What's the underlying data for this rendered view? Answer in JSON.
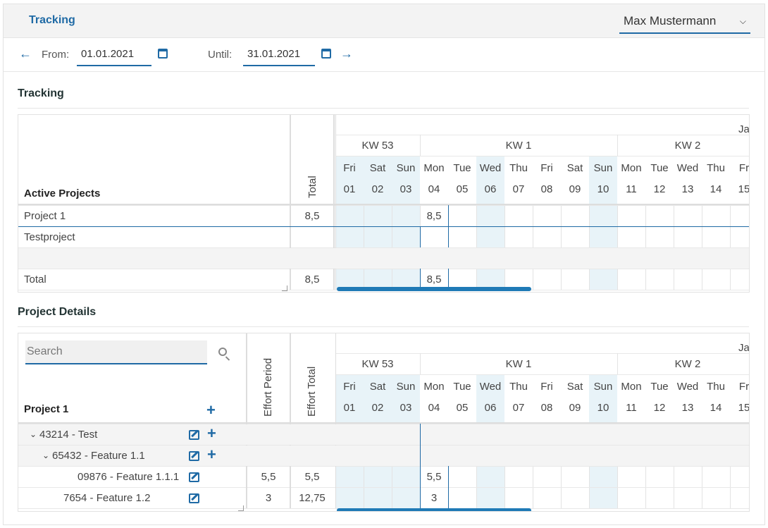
{
  "header": {
    "app_title": "Tracking",
    "user_name": "Max Mustermann"
  },
  "dates": {
    "from_label": "From:",
    "from_value": "01.01.2021",
    "until_label": "Until:",
    "until_value": "31.01.2021"
  },
  "tracking": {
    "section_title": "Tracking",
    "month_label": "Ja",
    "col_header": "Active Projects",
    "total_header": "Total",
    "weeks": [
      "KW 53",
      "KW 1",
      "KW 2"
    ],
    "days": [
      {
        "dow": "Fri",
        "num": "01"
      },
      {
        "dow": "Sat",
        "num": "02"
      },
      {
        "dow": "Sun",
        "num": "03"
      },
      {
        "dow": "Mon",
        "num": "04"
      },
      {
        "dow": "Tue",
        "num": "05"
      },
      {
        "dow": "Wed",
        "num": "06"
      },
      {
        "dow": "Thu",
        "num": "07"
      },
      {
        "dow": "Fri",
        "num": "08"
      },
      {
        "dow": "Sat",
        "num": "09"
      },
      {
        "dow": "Sun",
        "num": "10"
      },
      {
        "dow": "Mon",
        "num": "11"
      },
      {
        "dow": "Tue",
        "num": "12"
      },
      {
        "dow": "Wed",
        "num": "13"
      },
      {
        "dow": "Thu",
        "num": "14"
      },
      {
        "dow": "Fr",
        "num": "15"
      }
    ],
    "rows": [
      {
        "name": "Project 1",
        "total": "8,5",
        "day04": "8,5"
      },
      {
        "name": "Testproject",
        "total": "",
        "day04": ""
      },
      {
        "name": "",
        "total": "",
        "day04": ""
      },
      {
        "name": "Total",
        "total": "8,5",
        "day04": "8,5"
      }
    ]
  },
  "details": {
    "section_title": "Project Details",
    "search_placeholder": "Search",
    "project_title": "Project 1",
    "effort_period_header": "Effort Period",
    "effort_total_header": "Effort Total",
    "rows": [
      {
        "label": "43214 - Test",
        "period": "",
        "total": "",
        "day04": ""
      },
      {
        "label": "65432 - Feature 1.1",
        "period": "",
        "total": "",
        "day04": ""
      },
      {
        "label": "09876 - Feature 1.1.1",
        "period": "5,5",
        "total": "5,5",
        "day04": "5,5"
      },
      {
        "label": "7654 - Feature 1.2",
        "period": "3",
        "total": "12,75",
        "day04": "3"
      }
    ]
  }
}
